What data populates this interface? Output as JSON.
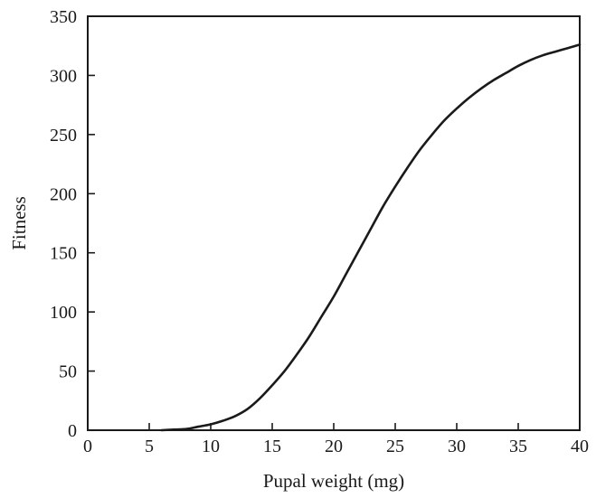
{
  "chart_data": {
    "type": "line",
    "title": "",
    "xlabel": "Pupal weight (mg)",
    "ylabel": "Fitness",
    "xlim": [
      0,
      40
    ],
    "ylim": [
      0,
      350
    ],
    "xticks": [
      0,
      5,
      10,
      15,
      20,
      25,
      30,
      35,
      40
    ],
    "yticks": [
      0,
      50,
      100,
      150,
      200,
      250,
      300,
      350
    ],
    "grid": false,
    "legend": "none",
    "line_color": "#1a1a1a",
    "series": [
      {
        "x": [
          6,
          7,
          8,
          9,
          10,
          11,
          12,
          13,
          14,
          15,
          16,
          17,
          18,
          19,
          20,
          21,
          22,
          23,
          24,
          25,
          26,
          27,
          28,
          29,
          30,
          31,
          32,
          33,
          34,
          35,
          36,
          37,
          38,
          39,
          40
        ],
        "values": [
          0,
          0.5,
          1,
          3,
          5,
          8,
          12,
          18,
          27,
          38,
          50,
          64,
          79,
          96,
          113,
          132,
          151,
          170,
          189,
          206,
          222,
          237,
          250,
          262,
          272,
          281,
          289,
          296,
          302,
          308,
          313,
          317,
          320,
          323,
          326
        ]
      }
    ]
  }
}
